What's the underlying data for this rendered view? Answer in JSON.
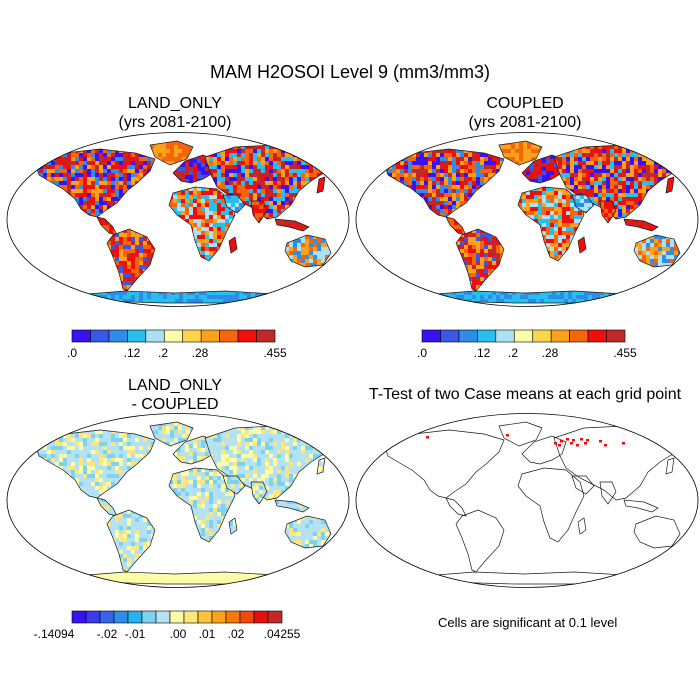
{
  "title": "MAM H2OSOI Level 9 (mm3/mm3)",
  "panels": [
    {
      "title_line1": "LAND_ONLY",
      "title_line2": "(yrs 2081-2100)"
    },
    {
      "title_line1": "COUPLED",
      "title_line2": "(yrs 2081-2100)"
    },
    {
      "title_line1": "LAND_ONLY",
      "title_line2": "- COUPLED"
    },
    {
      "title_line1": "T-Test of two Case means at each grid point",
      "title_line2": ""
    }
  ],
  "colorbar_top": {
    "colors": [
      "#3a12f2",
      "#3b57e8",
      "#2f8de8",
      "#27c0ee",
      "#aee0f2",
      "#fdfca8",
      "#fdd54a",
      "#f9a21a",
      "#f5650b",
      "#f20d0d",
      "#c22828"
    ],
    "labels": [
      ".0",
      ".12",
      ".2",
      ".28",
      ".455"
    ]
  },
  "colorbar_diff": {
    "colors": [
      "#3a12f2",
      "#3b3ae8",
      "#3b63e8",
      "#2f8de8",
      "#27b2ee",
      "#7ed2f0",
      "#b5e2f3",
      "#fdfca8",
      "#fde67a",
      "#fbc43c",
      "#f9a21a",
      "#f57a0b",
      "#f24a0d",
      "#e51010",
      "#c22828"
    ],
    "labels": [
      "-.14094",
      "-.02",
      "-.01",
      ".00",
      ".01",
      ".02",
      ".04255"
    ]
  },
  "significance_note": "Cells are significant at 0.1 level"
}
